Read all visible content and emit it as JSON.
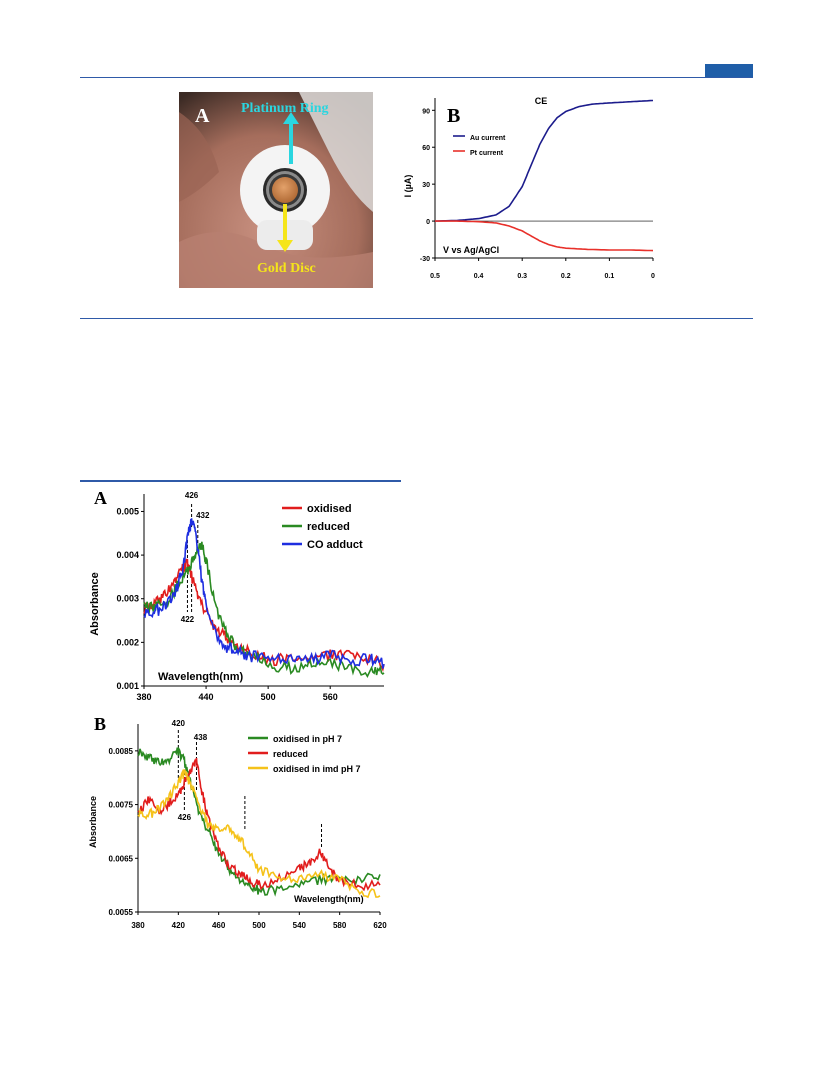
{
  "page": {
    "header_tab_color": "#1f5ea8",
    "rule_color": "#2f5aa8"
  },
  "panel_A_photo": {
    "panel_label": "A",
    "label_top": "Platinum Ring",
    "label_bottom": "Gold Disc",
    "label_top_color": "#2ad6e0",
    "label_bottom_color": "#f5e51a"
  },
  "chart_data": [
    {
      "panel": "B",
      "type": "line",
      "title": "CE",
      "xlabel": "V vs Ag/AgCl",
      "ylabel": "I (µA)",
      "x_ticks": [
        "0.5",
        "0.4",
        "0.3",
        "0.2",
        "0.1",
        "0"
      ],
      "y_ticks": [
        "90",
        "60",
        "30",
        "0",
        "-30"
      ],
      "xlim": [
        0.5,
        0
      ],
      "ylim": [
        -30,
        100
      ],
      "legend_position": "top-left",
      "series": [
        {
          "name": "Au current",
          "color": "#1c1c8c",
          "x": [
            0.5,
            0.45,
            0.4,
            0.36,
            0.33,
            0.3,
            0.28,
            0.26,
            0.24,
            0.22,
            0.2,
            0.17,
            0.14,
            0.1,
            0.05,
            0
          ],
          "y": [
            0,
            0.5,
            2,
            5,
            12,
            28,
            45,
            62,
            75,
            84,
            89,
            93,
            95,
            96,
            97,
            98
          ]
        },
        {
          "name": "Pt current",
          "color": "#e8302a",
          "x": [
            0.5,
            0.45,
            0.4,
            0.36,
            0.33,
            0.3,
            0.28,
            0.26,
            0.24,
            0.22,
            0.2,
            0.15,
            0.1,
            0.05,
            0
          ],
          "y": [
            0,
            0,
            -0.5,
            -1.5,
            -4,
            -8,
            -12,
            -16,
            -19,
            -21,
            -22,
            -23,
            -23.5,
            -23.5,
            -24
          ]
        }
      ]
    },
    {
      "panel": "A",
      "type": "line",
      "xlabel": "Wavelength(nm)",
      "ylabel": "Absorbance",
      "x_ticks": [
        "380",
        "440",
        "500",
        "560"
      ],
      "y_ticks": [
        "0.005",
        "0.004",
        "0.003",
        "0.002",
        "0.001"
      ],
      "xlim": [
        380,
        612
      ],
      "ylim": [
        0.001,
        0.0054
      ],
      "legend_position": "top-right",
      "annotations": [
        "426",
        "432",
        "422"
      ],
      "series": [
        {
          "name": "oxidised",
          "color": "#e11d1d",
          "x": [
            380,
            390,
            400,
            410,
            418,
            422,
            426,
            432,
            440,
            450,
            460,
            470,
            480,
            500,
            520,
            540,
            560,
            580,
            600,
            612
          ],
          "y": [
            0.0028,
            0.0029,
            0.0031,
            0.0034,
            0.0037,
            0.0038,
            0.0035,
            0.0031,
            0.0027,
            0.0023,
            0.0021,
            0.0019,
            0.0018,
            0.0016,
            0.0016,
            0.0016,
            0.0017,
            0.0017,
            0.0016,
            0.0015
          ]
        },
        {
          "name": "reduced",
          "color": "#2a8a22",
          "x": [
            380,
            390,
            400,
            410,
            420,
            426,
            432,
            436,
            440,
            450,
            460,
            470,
            480,
            500,
            520,
            540,
            560,
            580,
            600,
            612
          ],
          "y": [
            0.0028,
            0.0028,
            0.0029,
            0.0032,
            0.0036,
            0.0038,
            0.0041,
            0.0042,
            0.0039,
            0.0027,
            0.0022,
            0.0019,
            0.0017,
            0.0015,
            0.0014,
            0.0015,
            0.0015,
            0.0014,
            0.0013,
            0.0013
          ]
        },
        {
          "name": "CO adduct",
          "color": "#1e2ee0",
          "x": [
            380,
            390,
            400,
            410,
            418,
            422,
            426,
            430,
            436,
            440,
            450,
            460,
            470,
            480,
            500,
            520,
            540,
            560,
            580,
            600,
            612
          ],
          "y": [
            0.0026,
            0.0027,
            0.0028,
            0.0031,
            0.0037,
            0.0044,
            0.0048,
            0.0045,
            0.0034,
            0.0028,
            0.0022,
            0.0019,
            0.0018,
            0.0017,
            0.0016,
            0.0016,
            0.0016,
            0.0017,
            0.0016,
            0.0016,
            0.0015
          ]
        }
      ]
    },
    {
      "panel": "B",
      "type": "line",
      "xlabel": "Wavelength(nm)",
      "ylabel": "Absorbance",
      "x_ticks": [
        "380",
        "420",
        "460",
        "500",
        "540",
        "580",
        "620"
      ],
      "y_ticks": [
        "0.0085",
        "0.0075",
        "0.0065",
        "0.0055"
      ],
      "xlim": [
        380,
        620
      ],
      "ylim": [
        0.0055,
        0.009
      ],
      "legend_position": "top-right",
      "annotations": [
        "420",
        "438",
        "426"
      ],
      "series": [
        {
          "name": "oxidised in pH 7",
          "color": "#2a8a22",
          "x": [
            380,
            390,
            400,
            410,
            420,
            426,
            432,
            440,
            450,
            460,
            470,
            480,
            490,
            500,
            520,
            540,
            560,
            580,
            600,
            620
          ],
          "y": [
            0.0085,
            0.0084,
            0.0083,
            0.0083,
            0.0085,
            0.0083,
            0.0079,
            0.0074,
            0.007,
            0.0066,
            0.0063,
            0.0061,
            0.006,
            0.0059,
            0.0059,
            0.006,
            0.0061,
            0.0061,
            0.0061,
            0.0062
          ]
        },
        {
          "name": "reduced",
          "color": "#e11d1d",
          "x": [
            380,
            390,
            400,
            410,
            420,
            426,
            432,
            438,
            444,
            450,
            460,
            470,
            480,
            490,
            500,
            520,
            540,
            550,
            560,
            570,
            580,
            600,
            620
          ],
          "y": [
            0.0073,
            0.0076,
            0.0074,
            0.0075,
            0.0077,
            0.0079,
            0.0081,
            0.0083,
            0.0077,
            0.0072,
            0.0067,
            0.0064,
            0.0062,
            0.0061,
            0.006,
            0.0061,
            0.0063,
            0.0064,
            0.0066,
            0.0063,
            0.0061,
            0.006,
            0.006
          ]
        },
        {
          "name": "oxidised in imd pH 7",
          "color": "#f5c21a",
          "x": [
            380,
            390,
            400,
            410,
            420,
            426,
            432,
            440,
            450,
            460,
            470,
            480,
            490,
            500,
            520,
            540,
            560,
            580,
            600,
            620
          ],
          "y": [
            0.0073,
            0.0073,
            0.0074,
            0.0076,
            0.0079,
            0.0081,
            0.0079,
            0.0075,
            0.0071,
            0.007,
            0.0071,
            0.0069,
            0.0066,
            0.0063,
            0.0061,
            0.0061,
            0.0062,
            0.0061,
            0.0059,
            0.0058
          ]
        }
      ]
    }
  ]
}
